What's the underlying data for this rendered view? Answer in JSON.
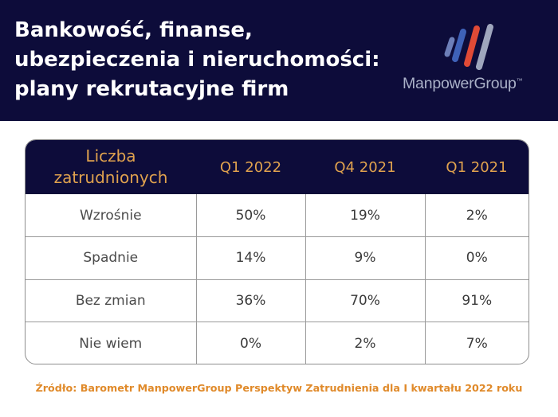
{
  "header": {
    "title_lines": [
      "Bankowość, finanse,",
      "ubezpieczenia i nieruchomości:",
      "plany rekrutacyjne firm"
    ],
    "logo_text": "ManpowerGroup",
    "logo_tm": "™"
  },
  "table": {
    "header_first_lines": [
      "Liczba",
      "zatrudnionych"
    ],
    "columns": [
      "Q1 2022",
      "Q4 2021",
      "Q1 2021"
    ],
    "rows": [
      {
        "label": "Wzrośnie",
        "values": [
          "50%",
          "19%",
          "2%"
        ]
      },
      {
        "label": "Spadnie",
        "values": [
          "14%",
          "9%",
          "0%"
        ]
      },
      {
        "label": "Bez zmian",
        "values": [
          "36%",
          "70%",
          "91%"
        ]
      },
      {
        "label": "Nie wiem",
        "values": [
          "0%",
          "2%",
          "7%"
        ]
      }
    ]
  },
  "source": "Źródło: Barometr ManpowerGroup Perspektyw Zatrudnienia dla I kwartału 2022 roku",
  "colors": {
    "header_bg": "#0d0c3a",
    "accent_orange": "#e0a24e",
    "logo_blue": "#4a78c8",
    "logo_red": "#c8322e",
    "logo_gray": "#aab1c8"
  }
}
